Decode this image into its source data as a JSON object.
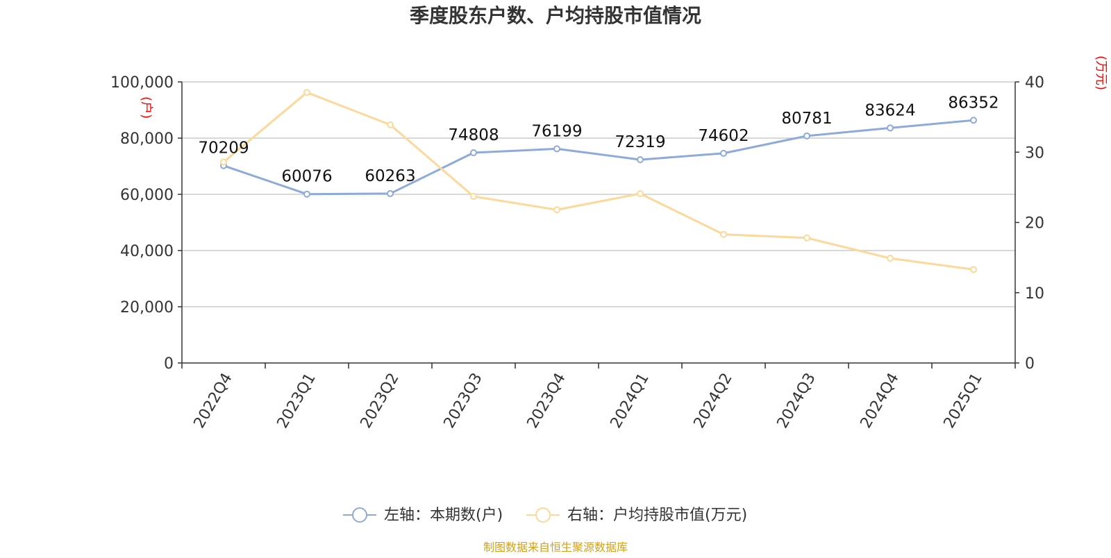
{
  "chart_data": {
    "type": "line",
    "title": "季度股东户数、户均持股市值情况",
    "categories": [
      "2022Q4",
      "2023Q1",
      "2023Q2",
      "2023Q3",
      "2023Q4",
      "2024Q1",
      "2024Q2",
      "2024Q3",
      "2024Q4",
      "2025Q1"
    ],
    "series": [
      {
        "name": "左轴：本期数(户)",
        "axis": "left",
        "color": "#8eaadb",
        "values": [
          70209,
          60076,
          60263,
          74808,
          76199,
          72319,
          74602,
          80781,
          83624,
          86352
        ],
        "labels": [
          "70209",
          "60076",
          "60263",
          "74808",
          "76199",
          "72319",
          "74602",
          "80781",
          "83624",
          "86352"
        ]
      },
      {
        "name": "右轴：户均持股市值(万元)",
        "axis": "right",
        "color": "#fdd89a",
        "values": [
          28.6,
          38.5,
          33.9,
          23.7,
          21.8,
          24.1,
          18.3,
          17.8,
          14.9,
          13.3
        ]
      }
    ],
    "left_axis": {
      "label": "(户)",
      "ylim": [
        0,
        100000
      ],
      "ticks": [
        "0",
        "20,000",
        "40,000",
        "60,000",
        "80,000",
        "100,000"
      ],
      "tick_values": [
        0,
        20000,
        40000,
        60000,
        80000,
        100000
      ]
    },
    "right_axis": {
      "label": "(万元)",
      "ylim": [
        0,
        40
      ],
      "ticks": [
        "0",
        "10",
        "20",
        "30",
        "40"
      ],
      "tick_values": [
        0,
        10,
        20,
        30,
        40
      ]
    },
    "grid": true,
    "legend_position": "bottom-center",
    "source": "制图数据来自恒生聚源数据库"
  },
  "colors": {
    "title": "#333333",
    "axis_text": "#333333",
    "axis_unit": "#ff0000",
    "grid": "#cccccc",
    "axis_line": "#333333",
    "source_text": "#d4a017"
  }
}
